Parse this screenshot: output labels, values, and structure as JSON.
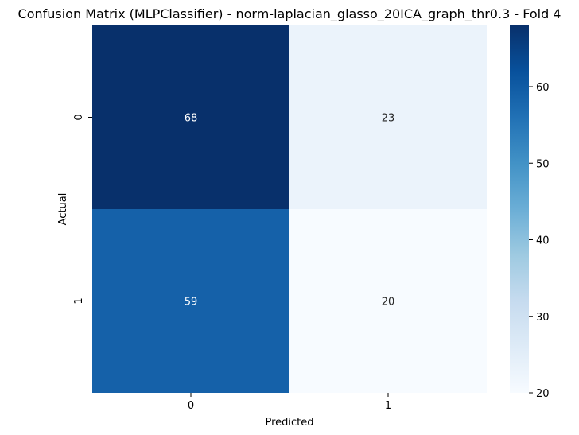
{
  "chart_data": {
    "type": "heatmap",
    "title": "Confusion Matrix (MLPClassifier) - norm-laplacian_glasso_20ICA_graph_thr0.3 - Fold 4",
    "xlabel": "Predicted",
    "ylabel": "Actual",
    "x_categories": [
      "0",
      "1"
    ],
    "y_categories": [
      "0",
      "1"
    ],
    "values": [
      [
        68,
        23
      ],
      [
        59,
        20
      ]
    ],
    "colormap": "Blues",
    "colorbar": {
      "min": 20,
      "max": 68,
      "ticks": [
        "20",
        "30",
        "40",
        "50",
        "60"
      ]
    },
    "grid": false,
    "legend": "colorbar-right"
  }
}
